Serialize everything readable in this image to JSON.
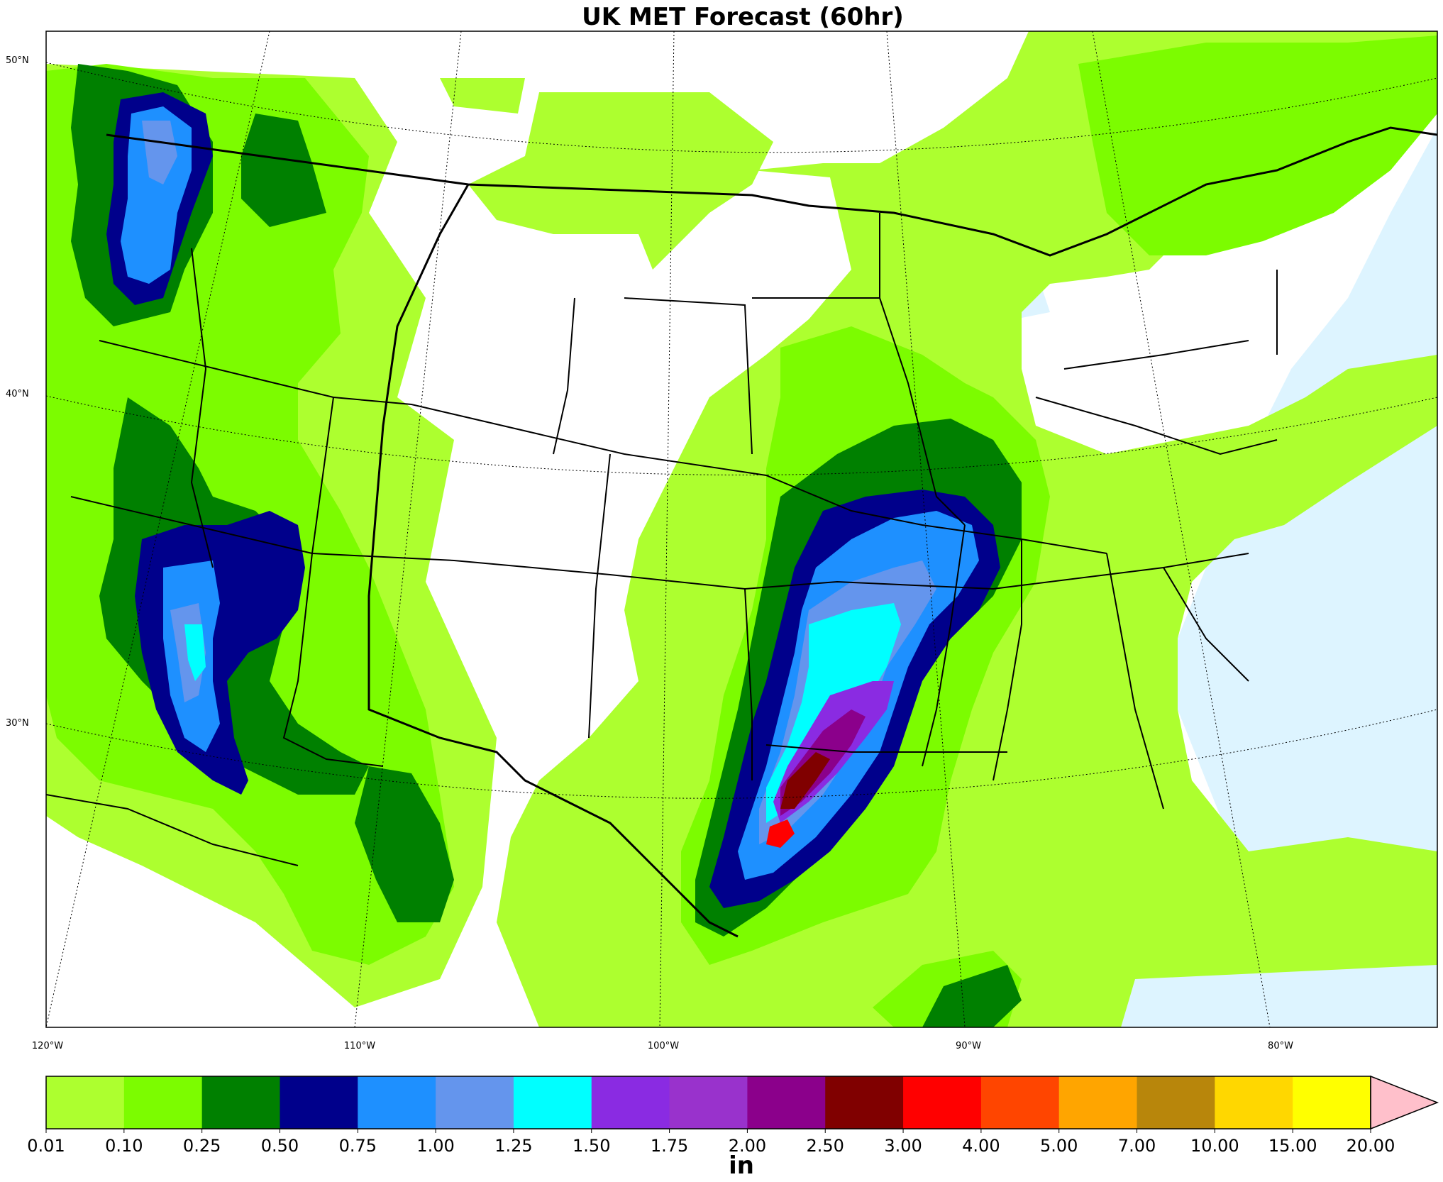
{
  "title": "UK MET Forecast (60hr)",
  "lat_labels": [
    "50°N",
    "40°N",
    "30°N"
  ],
  "lon_labels": [
    "120°W",
    "110°W",
    "100°W",
    "90°W",
    "80°W"
  ],
  "colorbar": {
    "unit": "in",
    "ticks": [
      "0.01",
      "0.10",
      "0.25",
      "0.50",
      "0.75",
      "1.00",
      "1.25",
      "1.50",
      "1.75",
      "2.00",
      "2.50",
      "3.00",
      "4.00",
      "5.00",
      "7.00",
      "10.00",
      "15.00",
      "20.00"
    ],
    "colors": [
      "#adff2f",
      "#7cfc00",
      "#008000",
      "#00008b",
      "#1e90ff",
      "#6495ed",
      "#00ffff",
      "#8a2be2",
      "#9932cc",
      "#8b008b",
      "#800000",
      "#ff0000",
      "#ff4500",
      "#ffa500",
      "#b8860b",
      "#ffd700",
      "#ffff00"
    ],
    "extend_color": "#ffc0cb"
  },
  "colors": {
    "water": "#ddf4ff",
    "land": "#ffffff"
  }
}
